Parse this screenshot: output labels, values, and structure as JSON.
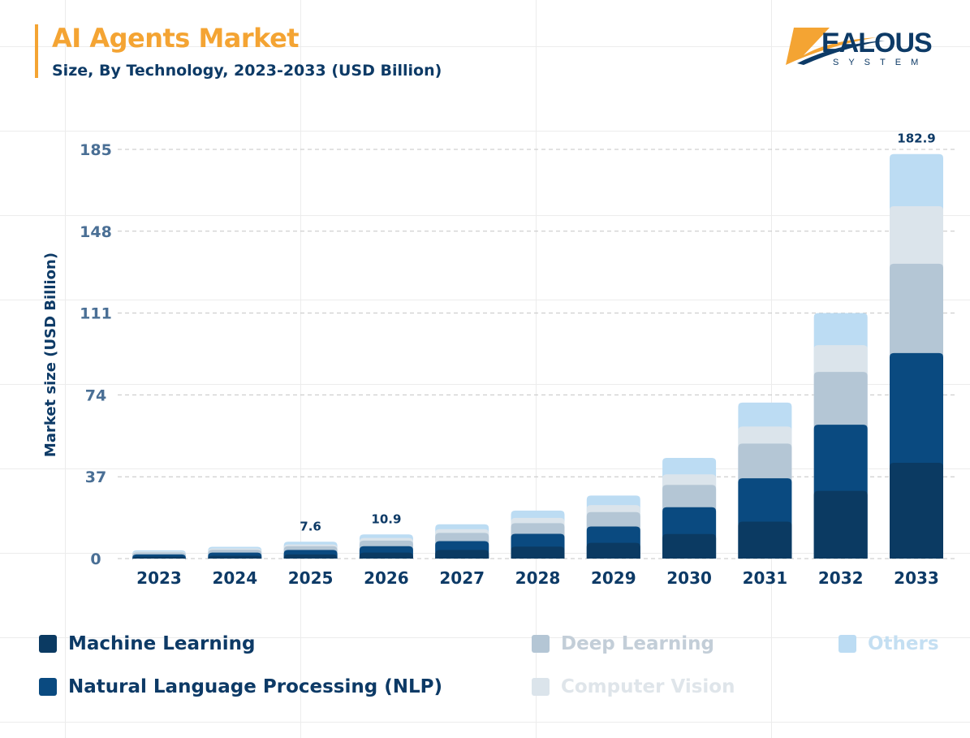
{
  "header": {
    "title": "AI Agents Market",
    "subtitle": "Size, By Technology, 2023-2033 (USD Billion)",
    "logo_text": "ZEALOUS",
    "logo_subtext": "SYSTEM"
  },
  "chart_data": {
    "type": "bar",
    "stacked": true,
    "title": "AI Agents Market",
    "subtitle": "Size, By Technology, 2023-2033 (USD Billion)",
    "xlabel": "",
    "ylabel": "Market size (USD Billion)",
    "ylim": [
      0,
      185
    ],
    "yticks": [
      0,
      37,
      74,
      111,
      148,
      185
    ],
    "grid": true,
    "legend_position": "bottom",
    "categories": [
      "2023",
      "2024",
      "2025",
      "2026",
      "2027",
      "2028",
      "2029",
      "2030",
      "2031",
      "2032",
      "2033"
    ],
    "series": [
      {
        "name": "Machine Learning",
        "color": "#0b3a62",
        "values": [
          0.9,
          1.3,
          1.9,
          2.7,
          3.9,
          5.4,
          7.1,
          11.1,
          16.7,
          30.6,
          43.3
        ]
      },
      {
        "name": "Natural Language Processing (NLP)",
        "color": "#0a4a80",
        "values": [
          1.0,
          1.4,
          2.0,
          2.9,
          4.0,
          5.8,
          7.4,
          12.1,
          19.6,
          29.9,
          49.6
        ]
      },
      {
        "name": "Deep Learning",
        "color": "#b4c6d5",
        "values": [
          0.9,
          1.3,
          1.7,
          2.5,
          3.7,
          4.8,
          6.5,
          10.1,
          15.7,
          23.9,
          40.4
        ]
      },
      {
        "name": "Computer Vision",
        "color": "#dbe4eb",
        "values": [
          0.4,
          0.6,
          0.8,
          1.2,
          1.7,
          2.4,
          3.2,
          4.8,
          7.7,
          12.1,
          26.0
        ]
      },
      {
        "name": "Others",
        "color": "#bcdcf3",
        "values": [
          0.5,
          0.7,
          1.2,
          1.6,
          2.2,
          3.3,
          4.3,
          7.4,
          10.8,
          14.5,
          23.6
        ]
      }
    ],
    "data_labels": [
      {
        "category": "2025",
        "text": "7.6"
      },
      {
        "category": "2026",
        "text": "10.9"
      },
      {
        "category": "2033",
        "text": "182.9"
      }
    ]
  },
  "legend": [
    {
      "label": "Machine Learning",
      "color": "#0b3a62",
      "text_color": "#0d3a66"
    },
    {
      "label": "Natural Language Processing (NLP)",
      "color": "#0a4a80",
      "text_color": "#0d3a66"
    },
    {
      "label": "Deep Learning",
      "color": "#b4c6d5",
      "text_color": "#c3ced8"
    },
    {
      "label": "Computer Vision",
      "color": "#dbe4eb",
      "text_color": "#dfe5ea"
    },
    {
      "label": "Others",
      "color": "#bcdcf3",
      "text_color": "#c4dff2"
    }
  ]
}
